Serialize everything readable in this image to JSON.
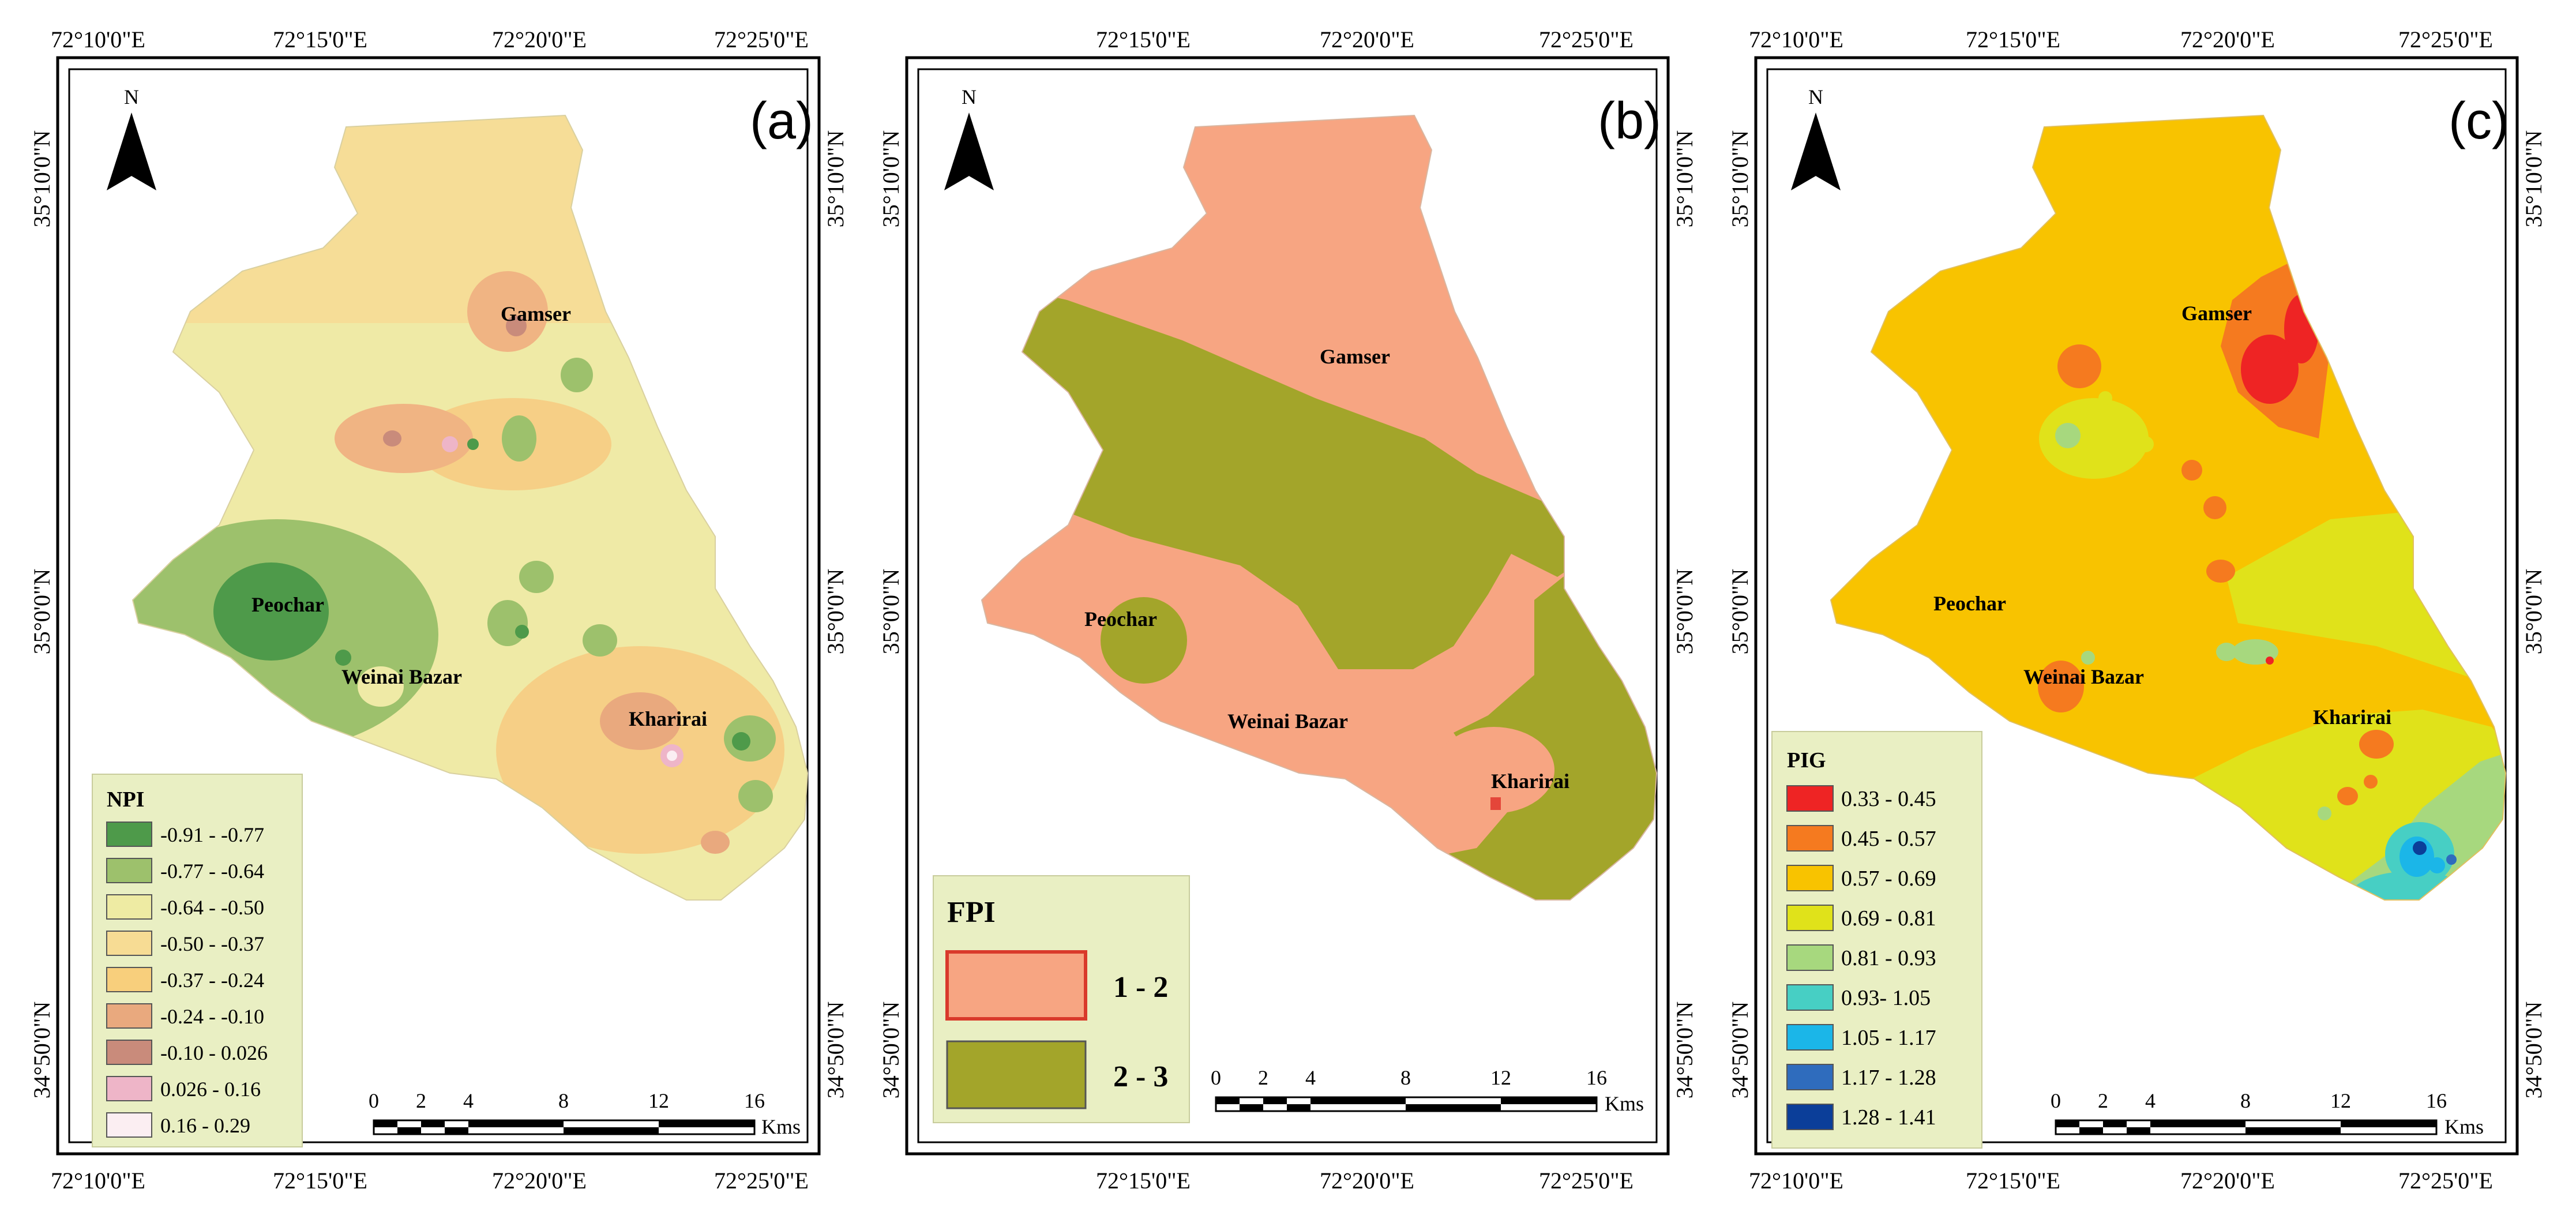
{
  "panels": [
    {
      "letter": "(a)",
      "north": "N",
      "top_ticks": [
        "72°10'0\"E",
        "72°15'0\"E",
        "72°20'0\"E",
        "72°25'0\"E"
      ],
      "bottom_ticks": [
        "72°10'0\"E",
        "72°15'0\"E",
        "72°20'0\"E",
        "72°25'0\"E"
      ],
      "left_ticks": [
        "35°10'0\"N",
        "35°0'0\"N",
        "34°50'0\"N"
      ],
      "right_ticks": [
        "35°10'0\"N",
        "35°0'0\"N",
        "34°50'0\"N"
      ],
      "places": [
        "Gamser",
        "Peochar",
        "Weinai Bazar",
        "Kharirai"
      ],
      "legend_title": "NPI",
      "legend": [
        {
          "label": "-0.91 - -0.77",
          "color": "#4e9a4a"
        },
        {
          "label": "-0.77 - -0.64",
          "color": "#9dc16c"
        },
        {
          "label": "-0.64 - -0.50",
          "color": "#eeeba3"
        },
        {
          "label": "-0.50 - -0.37",
          "color": "#f7dc94"
        },
        {
          "label": "-0.37 - -0.24",
          "color": "#f8cf7c"
        },
        {
          "label": "-0.24 - -0.10",
          "color": "#e9a97e"
        },
        {
          "label": "-0.10 - 0.026",
          "color": "#c98b7b"
        },
        {
          "label": "0.026 - 0.16",
          "color": "#eeb5c8"
        },
        {
          "label": "0.16 - 0.29",
          "color": "#fbeef2"
        }
      ],
      "scale_numbers": [
        "0",
        "2",
        "4",
        "8",
        "12",
        "16"
      ],
      "scale_unit": "Kms"
    },
    {
      "letter": "(b)",
      "north": "N",
      "top_ticks": [
        "72°15'0\"E",
        "72°20'0\"E",
        "72°25'0\"E"
      ],
      "bottom_ticks": [
        "72°15'0\"E",
        "72°20'0\"E",
        "72°25'0\"E"
      ],
      "left_ticks": [
        "35°10'0\"N",
        "35°0'0\"N",
        "34°50'0\"N"
      ],
      "right_ticks": [
        "35°10'0\"N",
        "35°0'0\"N",
        "34°50'0\"N"
      ],
      "places": [
        "Gamser",
        "Peochar",
        "Weinai Bazar",
        "Kharirai"
      ],
      "legend_title": "FPI",
      "legend": [
        {
          "label": "1 - 2",
          "color": "#f7a582"
        },
        {
          "label": "2 - 3",
          "color": "#a3a52a"
        }
      ],
      "scale_numbers": [
        "0",
        "2",
        "4",
        "8",
        "12",
        "16"
      ],
      "scale_unit": "Kms"
    },
    {
      "letter": "(c)",
      "north": "N",
      "top_ticks": [
        "72°10'0\"E",
        "72°15'0\"E",
        "72°20'0\"E",
        "72°25'0\"E"
      ],
      "bottom_ticks": [
        "72°10'0\"E",
        "72°15'0\"E",
        "72°20'0\"E",
        "72°25'0\"E"
      ],
      "left_ticks": [
        "35°10'0\"N",
        "35°0'0\"N",
        "34°50'0\"N"
      ],
      "right_ticks": [
        "35°10'0\"N",
        "35°0'0\"N",
        "34°50'0\"N"
      ],
      "places": [
        "Gamser",
        "Peochar",
        "Weinai Bazar",
        "Kharirai"
      ],
      "legend_title": "PIG",
      "legend": [
        {
          "label": "0.33 - 0.45",
          "color": "#ee2424"
        },
        {
          "label": "0.45 - 0.57",
          "color": "#f57a1f"
        },
        {
          "label": "0.57 - 0.69",
          "color": "#f8c300"
        },
        {
          "label": "0.69 - 0.81",
          "color": "#e0e21a"
        },
        {
          "label": "0.81 - 0.93",
          "color": "#a7d87e"
        },
        {
          "label": "0.93- 1.05",
          "color": "#47cfc4"
        },
        {
          "label": "1.05 - 1.17",
          "color": "#1bb6e8"
        },
        {
          "label": "1.17 - 1.28",
          "color": "#2f6cbd"
        },
        {
          "label": "1.28 - 1.41",
          "color": "#0b3e99"
        }
      ],
      "scale_numbers": [
        "0",
        "2",
        "4",
        "8",
        "12",
        "16"
      ],
      "scale_unit": "Kms"
    }
  ]
}
